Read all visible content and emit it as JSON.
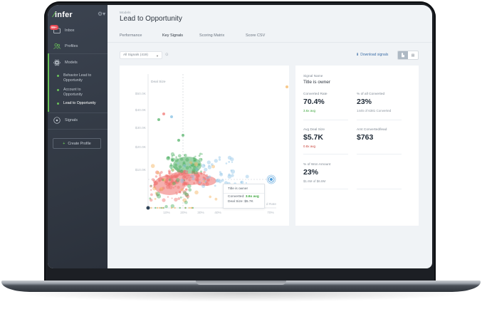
{
  "app": {
    "logo": "infer",
    "settings_icon": "gear-icon"
  },
  "sidebar": {
    "items": [
      {
        "label": "Inbox",
        "icon": "inbox-icon",
        "badge": "99+"
      },
      {
        "label": "Profiles",
        "icon": "profiles-icon"
      },
      {
        "label": "Models",
        "icon": "models-icon"
      },
      {
        "label": "Signals",
        "icon": "signals-icon"
      }
    ],
    "models_children": [
      {
        "label": "Behavior Lead to Opportunity",
        "line1": "Behavior Lead to",
        "line2": "Opportunity"
      },
      {
        "label": "Account to Opportunity",
        "line1": "Account to",
        "line2": "Opportunity"
      },
      {
        "label": "Lead to Opportunity",
        "line1": "Lead to Opportunity",
        "active": true
      }
    ],
    "create_profile": "Create Profile"
  },
  "header": {
    "breadcrumb": "Models",
    "title": "Lead to Opportunity"
  },
  "tabs": [
    {
      "label": "Performance"
    },
    {
      "label": "Key Signals",
      "active": true
    },
    {
      "label": "Scoring Matrix"
    },
    {
      "label": "Score CSV"
    }
  ],
  "toolbar": {
    "filter_value": "All Signals (419)",
    "download_label": "Download signals",
    "view_chart": "chart-view-icon",
    "view_table": "table-view-icon"
  },
  "tooltip": {
    "title": "Title is owner",
    "converted_label": "Converted:",
    "converted_value": "3.6x avg",
    "deal_label": "Deal Size:",
    "deal_value": "$5.7K"
  },
  "detail": {
    "signal_name_label": "Signal Name",
    "signal_name": "Title is owner",
    "converted_rate_label": "Converted Rate",
    "converted_rate": "70.4%",
    "converted_rate_sub": "3.6x avg",
    "pct_all_converted_label": "% of all Converted",
    "pct_all_converted": "23%",
    "pct_all_converted_sub": "1445 of 6381 Converted",
    "avg_deal_label": "Avg Deal Size",
    "avg_deal": "$5.7K",
    "avg_deal_sub": "0.8x avg",
    "amt_per_lead_label": "Amt Converted/lead",
    "amt_per_lead": "$763",
    "pct_won_label": "% of Won Amount",
    "pct_won": "23%",
    "pct_won_sub": "$1.6M of $6.8M"
  },
  "chart": {
    "ylabel": "Deal Size",
    "xlabel": "Converted Rate",
    "yticks": [
      "$50.0K",
      "$40.0K",
      "$30.0K",
      "$20.0K",
      "$10.0K"
    ],
    "xticks": [
      "10%",
      "20%",
      "30%",
      "40%",
      "70%"
    ],
    "colors": {
      "red": "#ef6f6c",
      "green": "#4caf62",
      "blue": "#8dc4e6",
      "orange": "#f5b25a",
      "highlight": "#4a9ad8"
    }
  }
}
